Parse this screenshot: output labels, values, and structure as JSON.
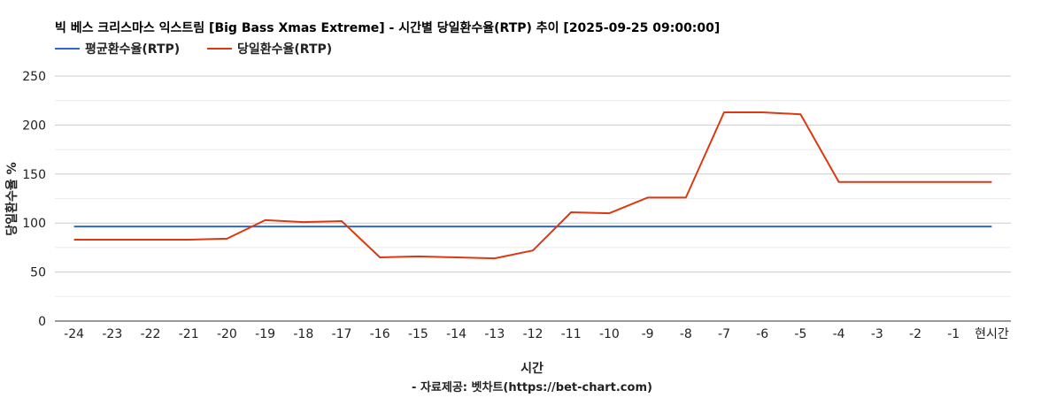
{
  "chart_data": {
    "type": "line",
    "title": "빅 베스 크리스마스 익스트림 [Big Bass Xmas Extreme] - 시간별 당일환수율(RTP) 추이 [2025-09-25 09:00:00]",
    "xlabel": "시간",
    "ylabel": "당일환수율 %",
    "footer": "- 자료제공: 벳차트(https://bet-chart.com)",
    "ylim": [
      0,
      250
    ],
    "yticks": [
      0,
      50,
      100,
      150,
      200,
      250
    ],
    "grid": true,
    "legend_position": "top-left",
    "categories": [
      "-24",
      "-23",
      "-22",
      "-21",
      "-20",
      "-19",
      "-18",
      "-17",
      "-16",
      "-15",
      "-14",
      "-13",
      "-12",
      "-11",
      "-10",
      "-9",
      "-8",
      "-7",
      "-6",
      "-5",
      "-4",
      "-3",
      "-2",
      "-1",
      "현시간"
    ],
    "series": [
      {
        "name": "평균환수율(RTP)",
        "color": "#3366cc",
        "values": [
          96.5,
          96.5,
          96.5,
          96.5,
          96.5,
          96.5,
          96.5,
          96.5,
          96.5,
          96.5,
          96.5,
          96.5,
          96.5,
          96.5,
          96.5,
          96.5,
          96.5,
          96.5,
          96.5,
          96.5,
          96.5,
          96.5,
          96.5,
          96.5,
          96.5
        ]
      },
      {
        "name": "당일환수율(RTP)",
        "color": "#dc3912",
        "values": [
          83,
          83,
          83,
          83,
          84,
          103,
          101,
          102,
          65,
          66,
          65,
          64,
          72,
          111,
          110,
          126,
          126,
          213,
          213,
          211,
          142,
          142,
          142,
          142,
          142
        ]
      }
    ]
  }
}
